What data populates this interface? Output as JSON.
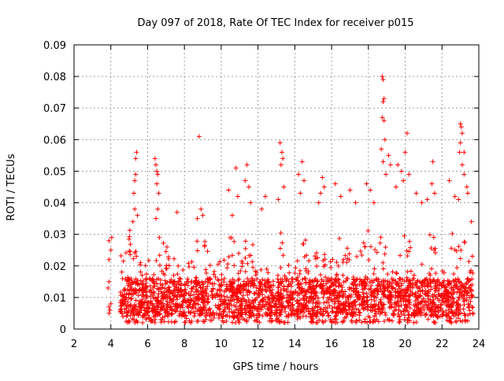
{
  "chart_data": {
    "type": "scatter",
    "title": "Day 097 of 2018, Rate Of TEC Index for receiver p015",
    "xlabel": "GPS time / hours",
    "ylabel": "ROTI / TECUs",
    "xlim": [
      2,
      24
    ],
    "ylim": [
      0,
      0.09
    ],
    "x_ticks": [
      2,
      4,
      6,
      8,
      10,
      12,
      14,
      16,
      18,
      20,
      22,
      24
    ],
    "x_tick_labels": [
      "2",
      "4",
      "6",
      "8",
      "10",
      "12",
      "14",
      "16",
      "18",
      "20",
      "22",
      "24"
    ],
    "y_ticks": [
      0,
      0.01,
      0.02,
      0.03,
      0.04,
      0.05,
      0.06,
      0.07,
      0.08,
      0.09
    ],
    "y_tick_labels": [
      "0",
      "0.01",
      "0.02",
      "0.03",
      "0.04",
      "0.05",
      "0.06",
      "0.07",
      "0.08",
      "0.09"
    ],
    "grid": true,
    "marker": "+",
    "marker_color": "#ff0000",
    "series": [
      {
        "name": "ROTI",
        "points": [
          [
            3.9,
            0.005
          ],
          [
            3.9,
            0.007
          ],
          [
            3.95,
            0.006
          ],
          [
            4.0,
            0.008
          ],
          [
            3.9,
            0.015
          ],
          [
            3.85,
            0.013
          ],
          [
            3.9,
            0.028
          ],
          [
            4.05,
            0.029
          ],
          [
            3.9,
            0.022
          ],
          [
            4.0,
            0.025
          ],
          [
            5.2,
            0.034
          ],
          [
            5.3,
            0.038
          ],
          [
            5.35,
            0.049
          ],
          [
            5.4,
            0.056
          ],
          [
            5.35,
            0.054
          ],
          [
            5.3,
            0.047
          ],
          [
            5.25,
            0.043
          ],
          [
            5.45,
            0.036
          ],
          [
            6.4,
            0.054
          ],
          [
            6.45,
            0.052
          ],
          [
            6.5,
            0.05
          ],
          [
            6.55,
            0.049
          ],
          [
            6.5,
            0.046
          ],
          [
            6.6,
            0.043
          ],
          [
            6.55,
            0.038
          ],
          [
            6.45,
            0.035
          ],
          [
            7.6,
            0.037
          ],
          [
            8.8,
            0.061
          ],
          [
            8.9,
            0.038
          ],
          [
            9.0,
            0.036
          ],
          [
            8.7,
            0.035
          ],
          [
            10.4,
            0.044
          ],
          [
            10.8,
            0.051
          ],
          [
            10.6,
            0.036
          ],
          [
            10.9,
            0.042
          ],
          [
            11.3,
            0.047
          ],
          [
            11.4,
            0.052
          ],
          [
            11.5,
            0.045
          ],
          [
            11.6,
            0.04
          ],
          [
            12.4,
            0.042
          ],
          [
            12.2,
            0.038
          ],
          [
            13.2,
            0.059
          ],
          [
            13.3,
            0.056
          ],
          [
            13.35,
            0.054
          ],
          [
            13.25,
            0.052
          ],
          [
            13.4,
            0.045
          ],
          [
            13.1,
            0.041
          ],
          [
            14.2,
            0.049
          ],
          [
            14.4,
            0.053
          ],
          [
            14.5,
            0.047
          ],
          [
            14.3,
            0.043
          ],
          [
            15.3,
            0.04
          ],
          [
            15.5,
            0.048
          ],
          [
            15.6,
            0.045
          ],
          [
            15.4,
            0.043
          ],
          [
            16.2,
            0.046
          ],
          [
            16.5,
            0.042
          ],
          [
            17.0,
            0.044
          ],
          [
            17.3,
            0.04
          ],
          [
            17.9,
            0.046
          ],
          [
            18.1,
            0.044
          ],
          [
            18.3,
            0.04
          ],
          [
            18.75,
            0.08
          ],
          [
            18.8,
            0.079
          ],
          [
            18.85,
            0.073
          ],
          [
            18.8,
            0.072
          ],
          [
            18.75,
            0.067
          ],
          [
            18.85,
            0.066
          ],
          [
            18.9,
            0.06
          ],
          [
            18.7,
            0.057
          ],
          [
            18.8,
            0.053
          ],
          [
            19.1,
            0.055
          ],
          [
            19.2,
            0.052
          ],
          [
            18.95,
            0.049
          ],
          [
            19.6,
            0.052
          ],
          [
            19.8,
            0.05
          ],
          [
            19.5,
            0.045
          ],
          [
            20.1,
            0.062
          ],
          [
            20.0,
            0.056
          ],
          [
            20.2,
            0.049
          ],
          [
            19.9,
            0.047
          ],
          [
            20.6,
            0.043
          ],
          [
            20.9,
            0.04
          ],
          [
            21.2,
            0.041
          ],
          [
            21.5,
            0.053
          ],
          [
            21.45,
            0.046
          ],
          [
            21.6,
            0.043
          ],
          [
            22.4,
            0.047
          ],
          [
            22.7,
            0.042
          ],
          [
            22.9,
            0.041
          ],
          [
            23.0,
            0.065
          ],
          [
            23.05,
            0.064
          ],
          [
            23.1,
            0.062
          ],
          [
            23.0,
            0.059
          ],
          [
            22.95,
            0.056
          ],
          [
            23.2,
            0.056
          ],
          [
            23.1,
            0.052
          ],
          [
            23.2,
            0.049
          ],
          [
            23.4,
            0.043
          ],
          [
            23.35,
            0.045
          ],
          [
            23.6,
            0.034
          ]
        ]
      }
    ],
    "dense_band": {
      "x_start": 4.5,
      "x_end": 23.7,
      "y_min": 0.002,
      "typical_top": 0.022,
      "peak_top": 0.038,
      "seed": 97
    }
  }
}
